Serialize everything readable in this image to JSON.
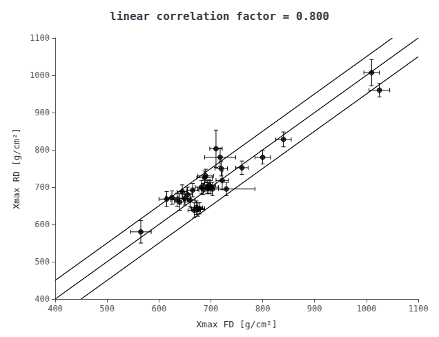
{
  "chart_data": {
    "type": "scatter",
    "title": "linear correlation factor = 0.800",
    "xlabel": "Xmax FD [g/cm²]",
    "ylabel": "Xmax RD [g/cm²]",
    "xlim": [
      400,
      1100
    ],
    "ylim": [
      400,
      1100
    ],
    "xticks": [
      400,
      500,
      600,
      700,
      800,
      900,
      1000,
      1100
    ],
    "yticks": [
      400,
      500,
      600,
      700,
      800,
      900,
      1000,
      1100
    ],
    "grid": false,
    "series": [
      {
        "type": "line",
        "color": "#000000",
        "line_style": "solid",
        "x": [
          400,
          1100
        ],
        "values": [
          400,
          1100
        ]
      },
      {
        "type": "line",
        "color": "#000000",
        "line_style": "solid",
        "x": [
          400,
          1050
        ],
        "values": [
          450,
          1100
        ]
      },
      {
        "type": "line",
        "color": "#000000",
        "line_style": "solid",
        "x": [
          450,
          1100
        ],
        "values": [
          400,
          1050
        ]
      },
      {
        "type": "scatter",
        "color": "black",
        "marker": "circle",
        "x": [
          565,
          615,
          625,
          635,
          640,
          645,
          650,
          655,
          660,
          665,
          668,
          672,
          675,
          678,
          682,
          685,
          688,
          690,
          693,
          695,
          697,
          700,
          703,
          710,
          718,
          720,
          722,
          730,
          760,
          800,
          840,
          1010,
          1025
        ],
        "values": [
          580,
          668,
          672,
          666,
          660,
          688,
          670,
          680,
          665,
          692,
          638,
          645,
          640,
          643,
          700,
          695,
          725,
          730,
          700,
          698,
          705,
          700,
          695,
          803,
          780,
          750,
          718,
          695,
          752,
          780,
          828,
          1007,
          960
        ],
        "xerr": [
          20,
          15,
          12,
          12,
          10,
          10,
          10,
          10,
          10,
          12,
          12,
          12,
          12,
          10,
          12,
          10,
          15,
          15,
          12,
          12,
          12,
          15,
          12,
          12,
          30,
          12,
          12,
          55,
          12,
          15,
          15,
          15,
          20
        ],
        "yerr": [
          30,
          20,
          18,
          18,
          22,
          18,
          18,
          20,
          18,
          18,
          20,
          18,
          18,
          15,
          18,
          15,
          18,
          18,
          18,
          15,
          15,
          18,
          18,
          50,
          25,
          20,
          25,
          18,
          18,
          18,
          20,
          35,
          18
        ]
      }
    ]
  }
}
